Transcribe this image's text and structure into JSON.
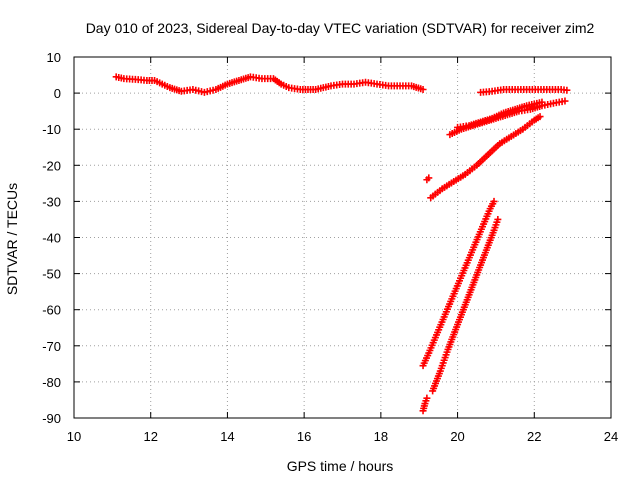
{
  "chart_data": {
    "type": "scatter",
    "title": "Day 010 of 2023, Sidereal Day-to-day VTEC variation (SDTVAR) for receiver zim2",
    "xlabel": "GPS time / hours",
    "ylabel": "SDTVAR / TECUs",
    "xlim": [
      10,
      24
    ],
    "ylim": [
      -90,
      10
    ],
    "xticks": [
      10,
      12,
      14,
      16,
      18,
      20,
      22,
      24
    ],
    "yticks": [
      10,
      0,
      -10,
      -20,
      -30,
      -40,
      -50,
      -60,
      -70,
      -80,
      -90
    ],
    "grid": true,
    "marker": "+",
    "color": "#ff0000",
    "tracks": [
      {
        "points": [
          [
            11.1,
            4.5
          ],
          [
            11.3,
            4.0
          ],
          [
            11.6,
            3.8
          ],
          [
            11.9,
            3.5
          ],
          [
            12.1,
            3.5
          ],
          [
            12.3,
            2.5
          ],
          [
            12.5,
            1.5
          ],
          [
            12.8,
            0.5
          ],
          [
            13.1,
            1.0
          ],
          [
            13.4,
            0.2
          ],
          [
            13.7,
            1.0
          ],
          [
            14.0,
            2.5
          ],
          [
            14.3,
            3.5
          ],
          [
            14.6,
            4.5
          ],
          [
            14.9,
            4.0
          ],
          [
            15.2,
            4.0
          ],
          [
            15.4,
            2.5
          ],
          [
            15.6,
            1.5
          ],
          [
            15.9,
            1.0
          ],
          [
            16.3,
            1.0
          ],
          [
            16.7,
            2.0
          ],
          [
            17.0,
            2.5
          ],
          [
            17.3,
            2.5
          ],
          [
            17.6,
            3.0
          ],
          [
            17.9,
            2.5
          ],
          [
            18.2,
            2.0
          ],
          [
            18.5,
            2.0
          ],
          [
            18.8,
            2.0
          ],
          [
            19.1,
            1.0
          ]
        ]
      },
      {
        "points": [
          [
            19.2,
            -24
          ],
          [
            19.25,
            -23.5
          ]
        ]
      },
      {
        "points": [
          [
            19.3,
            -29
          ],
          [
            19.6,
            -26.5
          ],
          [
            19.9,
            -24.5
          ],
          [
            20.2,
            -22.5
          ],
          [
            20.5,
            -20
          ],
          [
            20.8,
            -17
          ],
          [
            21.1,
            -14
          ],
          [
            21.4,
            -12
          ],
          [
            21.7,
            -10
          ],
          [
            22.0,
            -7.5
          ],
          [
            22.15,
            -6.5
          ]
        ]
      },
      {
        "points": [
          [
            19.8,
            -11.5
          ],
          [
            20.1,
            -10.0
          ],
          [
            20.4,
            -9.0
          ],
          [
            20.7,
            -8.0
          ],
          [
            21.0,
            -7.0
          ],
          [
            21.3,
            -6.0
          ],
          [
            21.6,
            -5.0
          ],
          [
            21.9,
            -4.5
          ],
          [
            22.2,
            -3.5
          ],
          [
            22.5,
            -2.8
          ],
          [
            22.8,
            -2.2
          ]
        ]
      },
      {
        "points": [
          [
            20.0,
            -9.5
          ],
          [
            20.3,
            -9.0
          ],
          [
            20.6,
            -8.0
          ],
          [
            20.9,
            -7.0
          ],
          [
            21.2,
            -5.5
          ],
          [
            21.5,
            -4.5
          ],
          [
            21.8,
            -3.5
          ],
          [
            22.0,
            -3.0
          ],
          [
            22.2,
            -2.5
          ]
        ]
      },
      {
        "points": [
          [
            20.6,
            0.2
          ],
          [
            20.9,
            0.5
          ],
          [
            21.2,
            1.0
          ],
          [
            21.5,
            1.0
          ],
          [
            21.8,
            1.0
          ],
          [
            22.1,
            1.0
          ],
          [
            22.4,
            1.0
          ],
          [
            22.7,
            1.0
          ],
          [
            22.85,
            0.8
          ]
        ]
      },
      {
        "points": [
          [
            19.1,
            -75.5
          ],
          [
            19.25,
            -72
          ],
          [
            19.45,
            -67
          ],
          [
            19.65,
            -62
          ],
          [
            19.85,
            -57
          ],
          [
            20.05,
            -52
          ],
          [
            20.25,
            -47
          ],
          [
            20.45,
            -42
          ],
          [
            20.65,
            -37
          ],
          [
            20.85,
            -32
          ],
          [
            20.95,
            -30
          ]
        ]
      },
      {
        "points": [
          [
            19.1,
            -88
          ],
          [
            19.15,
            -86
          ],
          [
            19.2,
            -84.5
          ]
        ]
      },
      {
        "points": [
          [
            19.35,
            -82.5
          ],
          [
            19.55,
            -77
          ],
          [
            19.75,
            -71
          ],
          [
            19.95,
            -65.5
          ],
          [
            20.15,
            -60
          ],
          [
            20.35,
            -54.5
          ],
          [
            20.55,
            -49
          ],
          [
            20.75,
            -43.5
          ],
          [
            20.95,
            -38
          ],
          [
            21.05,
            -35
          ]
        ]
      }
    ]
  }
}
